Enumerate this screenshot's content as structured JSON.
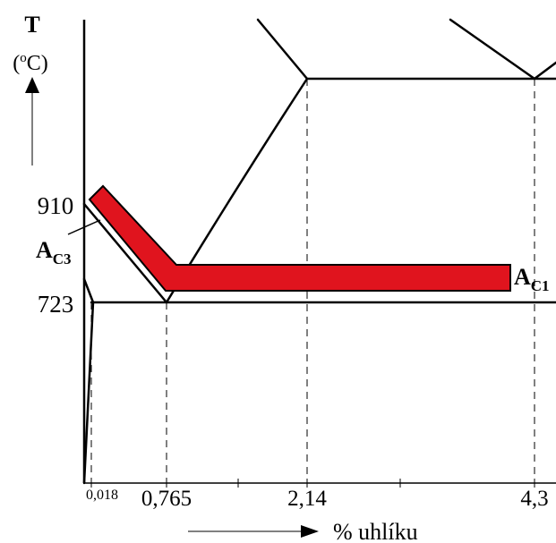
{
  "axis": {
    "y_title": "T",
    "y_unit_open": "(",
    "y_unit_sup": "o",
    "y_unit_rest": "C)",
    "x_label": "% uhlíku"
  },
  "y_ticks": [
    {
      "id": "t910",
      "label": "910"
    },
    {
      "id": "t723",
      "label": "723"
    }
  ],
  "x_ticks": [
    {
      "id": "x0018",
      "label": "0,018"
    },
    {
      "id": "x0765",
      "label": "0,765"
    },
    {
      "id": "x214",
      "label": "2,14"
    },
    {
      "id": "x43",
      "label": "4,3"
    }
  ],
  "annotations": {
    "ac3_main": "A",
    "ac3_sub": "C3",
    "ac1_main": "A",
    "ac1_sub": "C1"
  },
  "colors": {
    "band_fill": "#e0141e",
    "line": "#000000"
  }
}
